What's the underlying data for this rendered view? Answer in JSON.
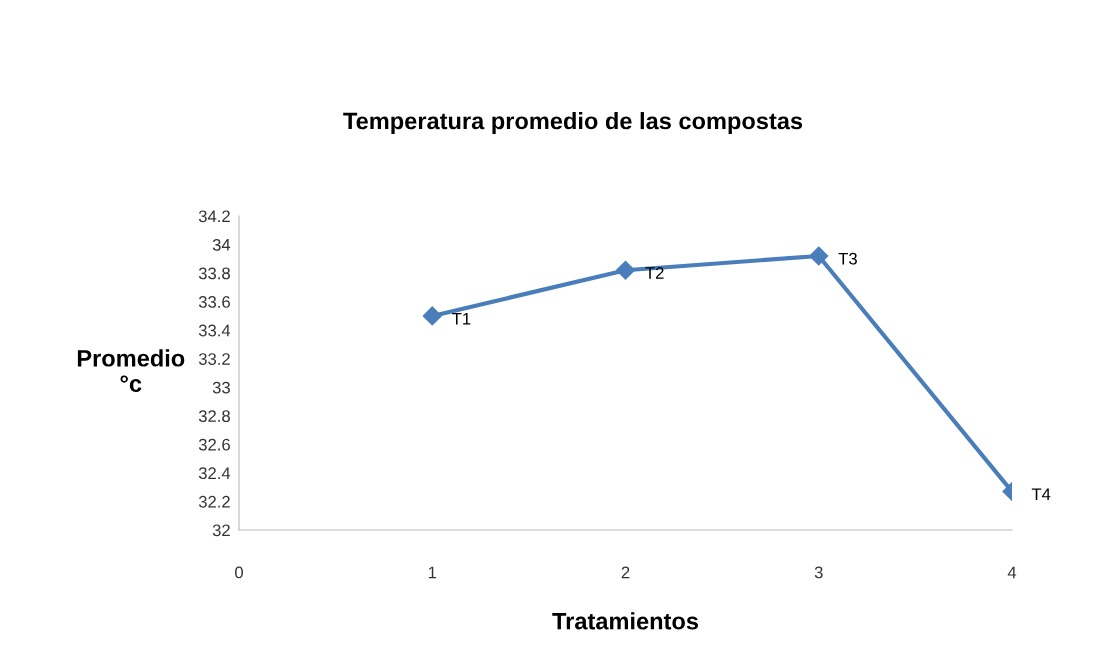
{
  "chart_data": {
    "type": "line",
    "title": "Temperatura promedio de las compostas",
    "xlabel": "Tratamientos",
    "ylabel": "Promedio\n°c",
    "x": [
      1,
      2,
      3,
      4
    ],
    "series": [
      {
        "color": "#4a7ebb",
        "values": [
          33.5,
          33.82,
          33.92,
          32.27
        ]
      }
    ],
    "annotations": [
      {
        "text": "T1",
        "x": 1,
        "y": 33.5
      },
      {
        "text": "T2",
        "x": 2,
        "y": 33.82
      },
      {
        "text": "T3",
        "x": 3,
        "y": 33.92
      },
      {
        "text": "T4",
        "x": 4,
        "y": 32.27
      }
    ],
    "xlim": [
      0,
      4
    ],
    "xticks": [
      0,
      1,
      2,
      3,
      4
    ],
    "ylim": [
      32,
      34.2
    ],
    "yticks": [
      32,
      {
        "value": 32.2,
        "label": "32.2"
      },
      {
        "value": 32.4,
        "label": "32.4"
      },
      {
        "value": 32.6,
        "label": "32.6"
      },
      {
        "value": 32.8,
        "label": "32.8"
      },
      33,
      {
        "value": 33.2,
        "label": "33.2"
      },
      {
        "value": 33.4,
        "label": "33.4"
      },
      {
        "value": 33.6,
        "label": "33.6"
      },
      {
        "value": 33.8,
        "label": "33.8"
      },
      34,
      {
        "value": 34.2,
        "label": "34.2"
      }
    ],
    "marker": "diamond",
    "line_style": "solid",
    "grid": false,
    "legend": false
  }
}
